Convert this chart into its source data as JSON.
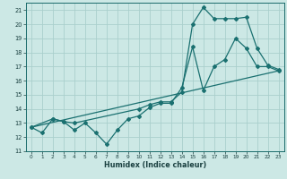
{
  "xlabel": "Humidex (Indice chaleur)",
  "bg_color": "#cce8e5",
  "grid_color": "#aacfcc",
  "line_color": "#1a7070",
  "ylim": [
    11,
    21.5
  ],
  "xlim": [
    -0.5,
    23.5
  ],
  "yticks": [
    11,
    12,
    13,
    14,
    15,
    16,
    17,
    18,
    19,
    20,
    21
  ],
  "xticks": [
    0,
    1,
    2,
    3,
    4,
    5,
    6,
    7,
    8,
    9,
    10,
    11,
    12,
    13,
    14,
    15,
    16,
    17,
    18,
    19,
    20,
    21,
    22,
    23
  ],
  "line1_x": [
    0,
    23
  ],
  "line1_y": [
    12.7,
    16.7
  ],
  "line2_x": [
    0,
    2,
    3,
    4,
    10,
    11,
    12,
    13,
    14,
    15,
    16,
    17,
    18,
    19,
    20,
    21,
    22,
    23
  ],
  "line2_y": [
    12.7,
    13.3,
    13.1,
    13.0,
    14.0,
    14.3,
    14.5,
    14.5,
    15.2,
    20.0,
    21.2,
    20.4,
    20.4,
    20.4,
    20.5,
    18.3,
    17.1,
    16.8
  ],
  "line3_x": [
    0,
    1,
    2,
    3,
    4,
    5,
    6,
    7,
    8,
    9,
    10,
    11,
    12,
    13,
    14,
    15,
    16,
    17,
    18,
    19,
    20,
    21,
    22,
    23
  ],
  "line3_y": [
    12.7,
    12.3,
    13.3,
    13.1,
    12.5,
    13.0,
    12.3,
    11.5,
    12.5,
    13.3,
    13.5,
    14.1,
    14.4,
    14.4,
    15.5,
    18.4,
    15.3,
    17.0,
    17.5,
    19.0,
    18.3,
    17.0,
    17.0,
    16.7
  ]
}
